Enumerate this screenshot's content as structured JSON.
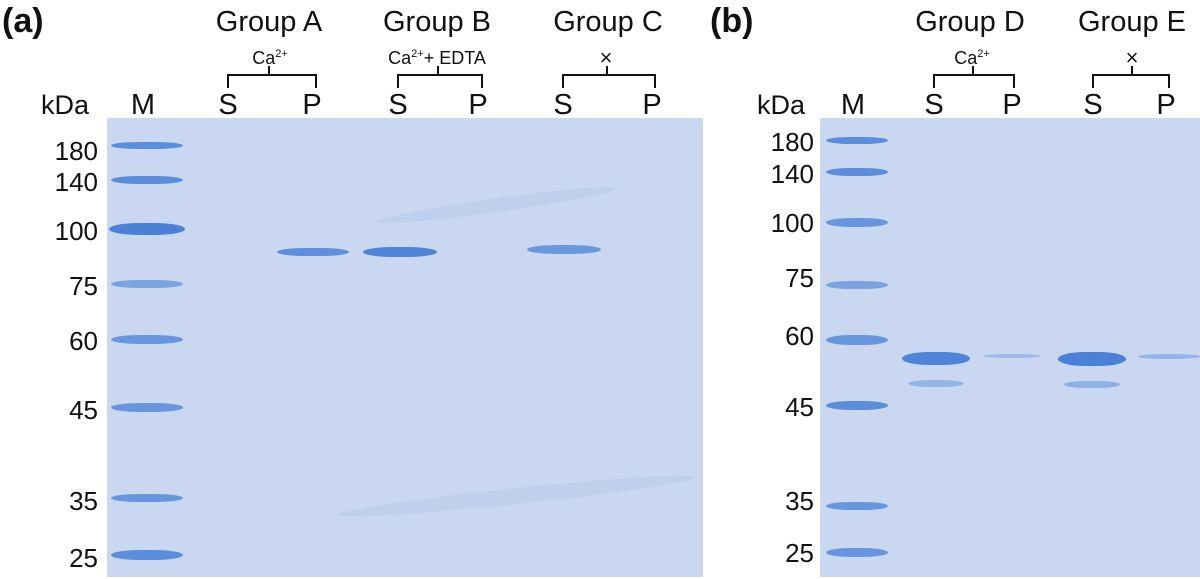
{
  "panel_a": {
    "panel_label": "(a)",
    "kda_label": "kDa",
    "marker_lane_label": "M",
    "groups": [
      {
        "title": "Group A",
        "condition_main": "Ca",
        "condition_sup": "2+",
        "condition_rest": ""
      },
      {
        "title": "Group B",
        "condition_main": "Ca",
        "condition_sup": "2+",
        "condition_rest": "+ EDTA"
      },
      {
        "title": "Group C",
        "condition_main": "×",
        "condition_sup": "",
        "condition_rest": ""
      }
    ],
    "lane_labels": [
      "S",
      "P",
      "S",
      "P",
      "S",
      "P"
    ],
    "mw_markers": [
      "180",
      "140",
      "100",
      "75",
      "60",
      "45",
      "35",
      "25"
    ]
  },
  "panel_b": {
    "panel_label": "(b)",
    "kda_label": "kDa",
    "marker_lane_label": "M",
    "groups": [
      {
        "title": "Group D",
        "condition_main": "Ca",
        "condition_sup": "2+",
        "condition_rest": ""
      },
      {
        "title": "Group E",
        "condition_main": "×",
        "condition_sup": "",
        "condition_rest": ""
      }
    ],
    "lane_labels": [
      "S",
      "P",
      "S",
      "P"
    ],
    "mw_markers": [
      "180",
      "140",
      "100",
      "75",
      "60",
      "45",
      "35",
      "25"
    ]
  },
  "colors": {
    "gel_background": "#c9d8f0",
    "band": "#5e8fdc",
    "marker_band": "#4f84d8"
  }
}
